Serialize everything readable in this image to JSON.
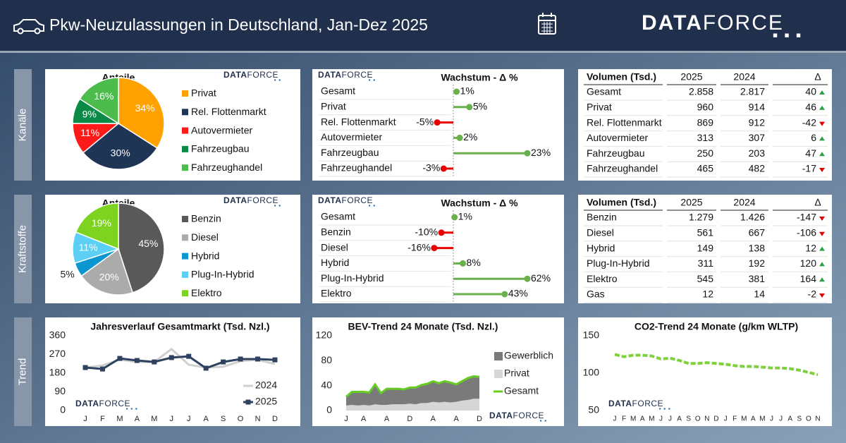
{
  "header": {
    "title": "Pkw-Neuzulassungen in Deutschland, Jan-Dez 2025",
    "brand": [
      "DATA",
      "FORCE"
    ]
  },
  "sections": [
    "Kanäle",
    "Kraftstoffe",
    "Trend"
  ],
  "chart_data": [
    {
      "type": "pie",
      "title": "Anteile",
      "categories": [
        "Privat",
        "Rel. Flottenmarkt",
        "Autovermieter",
        "Fahrzeugbau",
        "Fahrzeughandel"
      ],
      "values": [
        34,
        30,
        11,
        9,
        16
      ],
      "value_labels": [
        "34%",
        "30%",
        "11%",
        "9%",
        "16%"
      ],
      "colors": [
        "#ffa200",
        "#1f3556",
        "#ff1a1a",
        "#0b8a45",
        "#4cbc4c"
      ]
    },
    {
      "type": "lollipop",
      "title": "Wachstum - Δ %",
      "categories": [
        "Gesamt",
        "Privat",
        "Rel. Flottenmarkt",
        "Autovermieter",
        "Fahrzeugbau",
        "Fahrzeughandel"
      ],
      "values": [
        1,
        5,
        -5,
        2,
        23,
        -3
      ],
      "value_labels": [
        "1%",
        "5%",
        "-5%",
        "2%",
        "23%",
        "-3%"
      ],
      "positive_color": "#6ab04c",
      "negative_color": "#e80000"
    },
    {
      "type": "pie",
      "title": "Anteile",
      "categories": [
        "Benzin",
        "Diesel",
        "Hybrid",
        "Plug-In-Hybrid",
        "Elektro"
      ],
      "values": [
        45,
        20,
        5,
        11,
        19
      ],
      "value_labels": [
        "45%",
        "20%",
        "5%",
        "11%",
        "19%"
      ],
      "colors": [
        "#595959",
        "#ababab",
        "#0a97cf",
        "#5ccff5",
        "#7ed321"
      ]
    },
    {
      "type": "lollipop",
      "title": "Wachstum - Δ %",
      "categories": [
        "Gesamt",
        "Benzin",
        "Diesel",
        "Hybrid",
        "Plug-In-Hybrid",
        "Elektro"
      ],
      "values": [
        1,
        -10,
        -16,
        8,
        62,
        43
      ],
      "value_labels": [
        "1%",
        "-10%",
        "-16%",
        "8%",
        "62%",
        "43%"
      ],
      "positive_color": "#6ab04c",
      "negative_color": "#e80000"
    },
    {
      "type": "line",
      "title": "Jahresverlauf Gesamtmarkt (Tsd. Nzl.)",
      "categories": [
        "J",
        "F",
        "M",
        "A",
        "M",
        "J",
        "J",
        "A",
        "S",
        "O",
        "N",
        "D"
      ],
      "ylim": [
        0,
        360
      ],
      "yticks": [
        0,
        90,
        180,
        270,
        360
      ],
      "series": [
        {
          "name": "2024",
          "color": "#cfcfcf",
          "values": [
            207,
            217,
            245,
            234,
            234,
            296,
            221,
            207,
            211,
            238,
            245,
            224
          ]
        },
        {
          "name": "2025",
          "color": "#2e4160",
          "markers": true,
          "values": [
            207,
            200,
            251,
            241,
            234,
            255,
            261,
            204,
            234,
            248,
            248,
            244
          ]
        }
      ]
    },
    {
      "type": "area",
      "title": "BEV-Trend 24 Monate (Tsd. Nzl.)",
      "categories": [
        "J",
        null,
        null,
        "A",
        null,
        null,
        null,
        "A",
        null,
        null,
        null,
        "D",
        null,
        null,
        null,
        "A",
        null,
        null,
        null,
        "A",
        null,
        null,
        null,
        "D"
      ],
      "ylim": [
        0,
        120
      ],
      "yticks": [
        0,
        40,
        80,
        120
      ],
      "series": [
        {
          "name": "Gewerblich",
          "kind": "area",
          "color": "#7a7a7a",
          "values": [
            14,
            21,
            22,
            21,
            21,
            32,
            19,
            26,
            25,
            25,
            24,
            26,
            27,
            29,
            31,
            33,
            31,
            33,
            32,
            28,
            31,
            35,
            36,
            35
          ]
        },
        {
          "name": "Privat",
          "kind": "area",
          "color": "#d6d6d6",
          "values": [
            8,
            9,
            8,
            9,
            8,
            10,
            9,
            9,
            10,
            10,
            10,
            11,
            10,
            12,
            12,
            14,
            13,
            14,
            13,
            14,
            16,
            17,
            19,
            19
          ]
        },
        {
          "name": "Gesamt",
          "kind": "line",
          "color": "#66cc22",
          "values": [
            22,
            30,
            30,
            30,
            29,
            42,
            28,
            35,
            35,
            35,
            34,
            37,
            37,
            41,
            43,
            47,
            44,
            47,
            45,
            42,
            47,
            52,
            55,
            54
          ]
        }
      ]
    },
    {
      "type": "line",
      "title": "CO2-Trend 24 Monate (g/km WLTP)",
      "categories": [
        "J",
        "F",
        "M",
        "A",
        "M",
        "J",
        "J",
        "A",
        "S",
        "O",
        "N",
        "D",
        "J",
        "F",
        "M",
        "A",
        "M",
        "J",
        "J",
        "A",
        "S",
        "O",
        "N"
      ],
      "ylim": [
        50,
        150
      ],
      "yticks": [
        50,
        100,
        150
      ],
      "series": [
        {
          "color": "#7fd13b",
          "dashed": true,
          "values": [
            125,
            122,
            124,
            124,
            123,
            119,
            120,
            117,
            113,
            113,
            114,
            113,
            112,
            110,
            109,
            109,
            108,
            107,
            107,
            106,
            104,
            101,
            98
          ]
        }
      ]
    }
  ],
  "tables": [
    {
      "header": [
        "Volumen (Tsd.)",
        "2025",
        "2024",
        "Δ"
      ],
      "rows": [
        [
          "Gesamt",
          "2.858",
          "2.817",
          "40"
        ],
        [
          "Privat",
          "960",
          "914",
          "46"
        ],
        [
          "Rel. Flottenmarkt",
          "869",
          "912",
          "-42"
        ],
        [
          "Autovermieter",
          "313",
          "307",
          "6"
        ],
        [
          "Fahrzeugbau",
          "250",
          "203",
          "47"
        ],
        [
          "Fahrzeughandel",
          "465",
          "482",
          "-17"
        ]
      ]
    },
    {
      "header": [
        "Volumen (Tsd.)",
        "2025",
        "2024",
        "Δ"
      ],
      "rows": [
        [
          "Benzin",
          "1.279",
          "1.426",
          "-147"
        ],
        [
          "Diesel",
          "561",
          "667",
          "-106"
        ],
        [
          "Hybrid",
          "149",
          "138",
          "12"
        ],
        [
          "Plug-In-Hybrid",
          "311",
          "192",
          "120"
        ],
        [
          "Elektro",
          "545",
          "381",
          "164"
        ],
        [
          "Gas",
          "12",
          "14",
          "-2"
        ]
      ]
    }
  ]
}
